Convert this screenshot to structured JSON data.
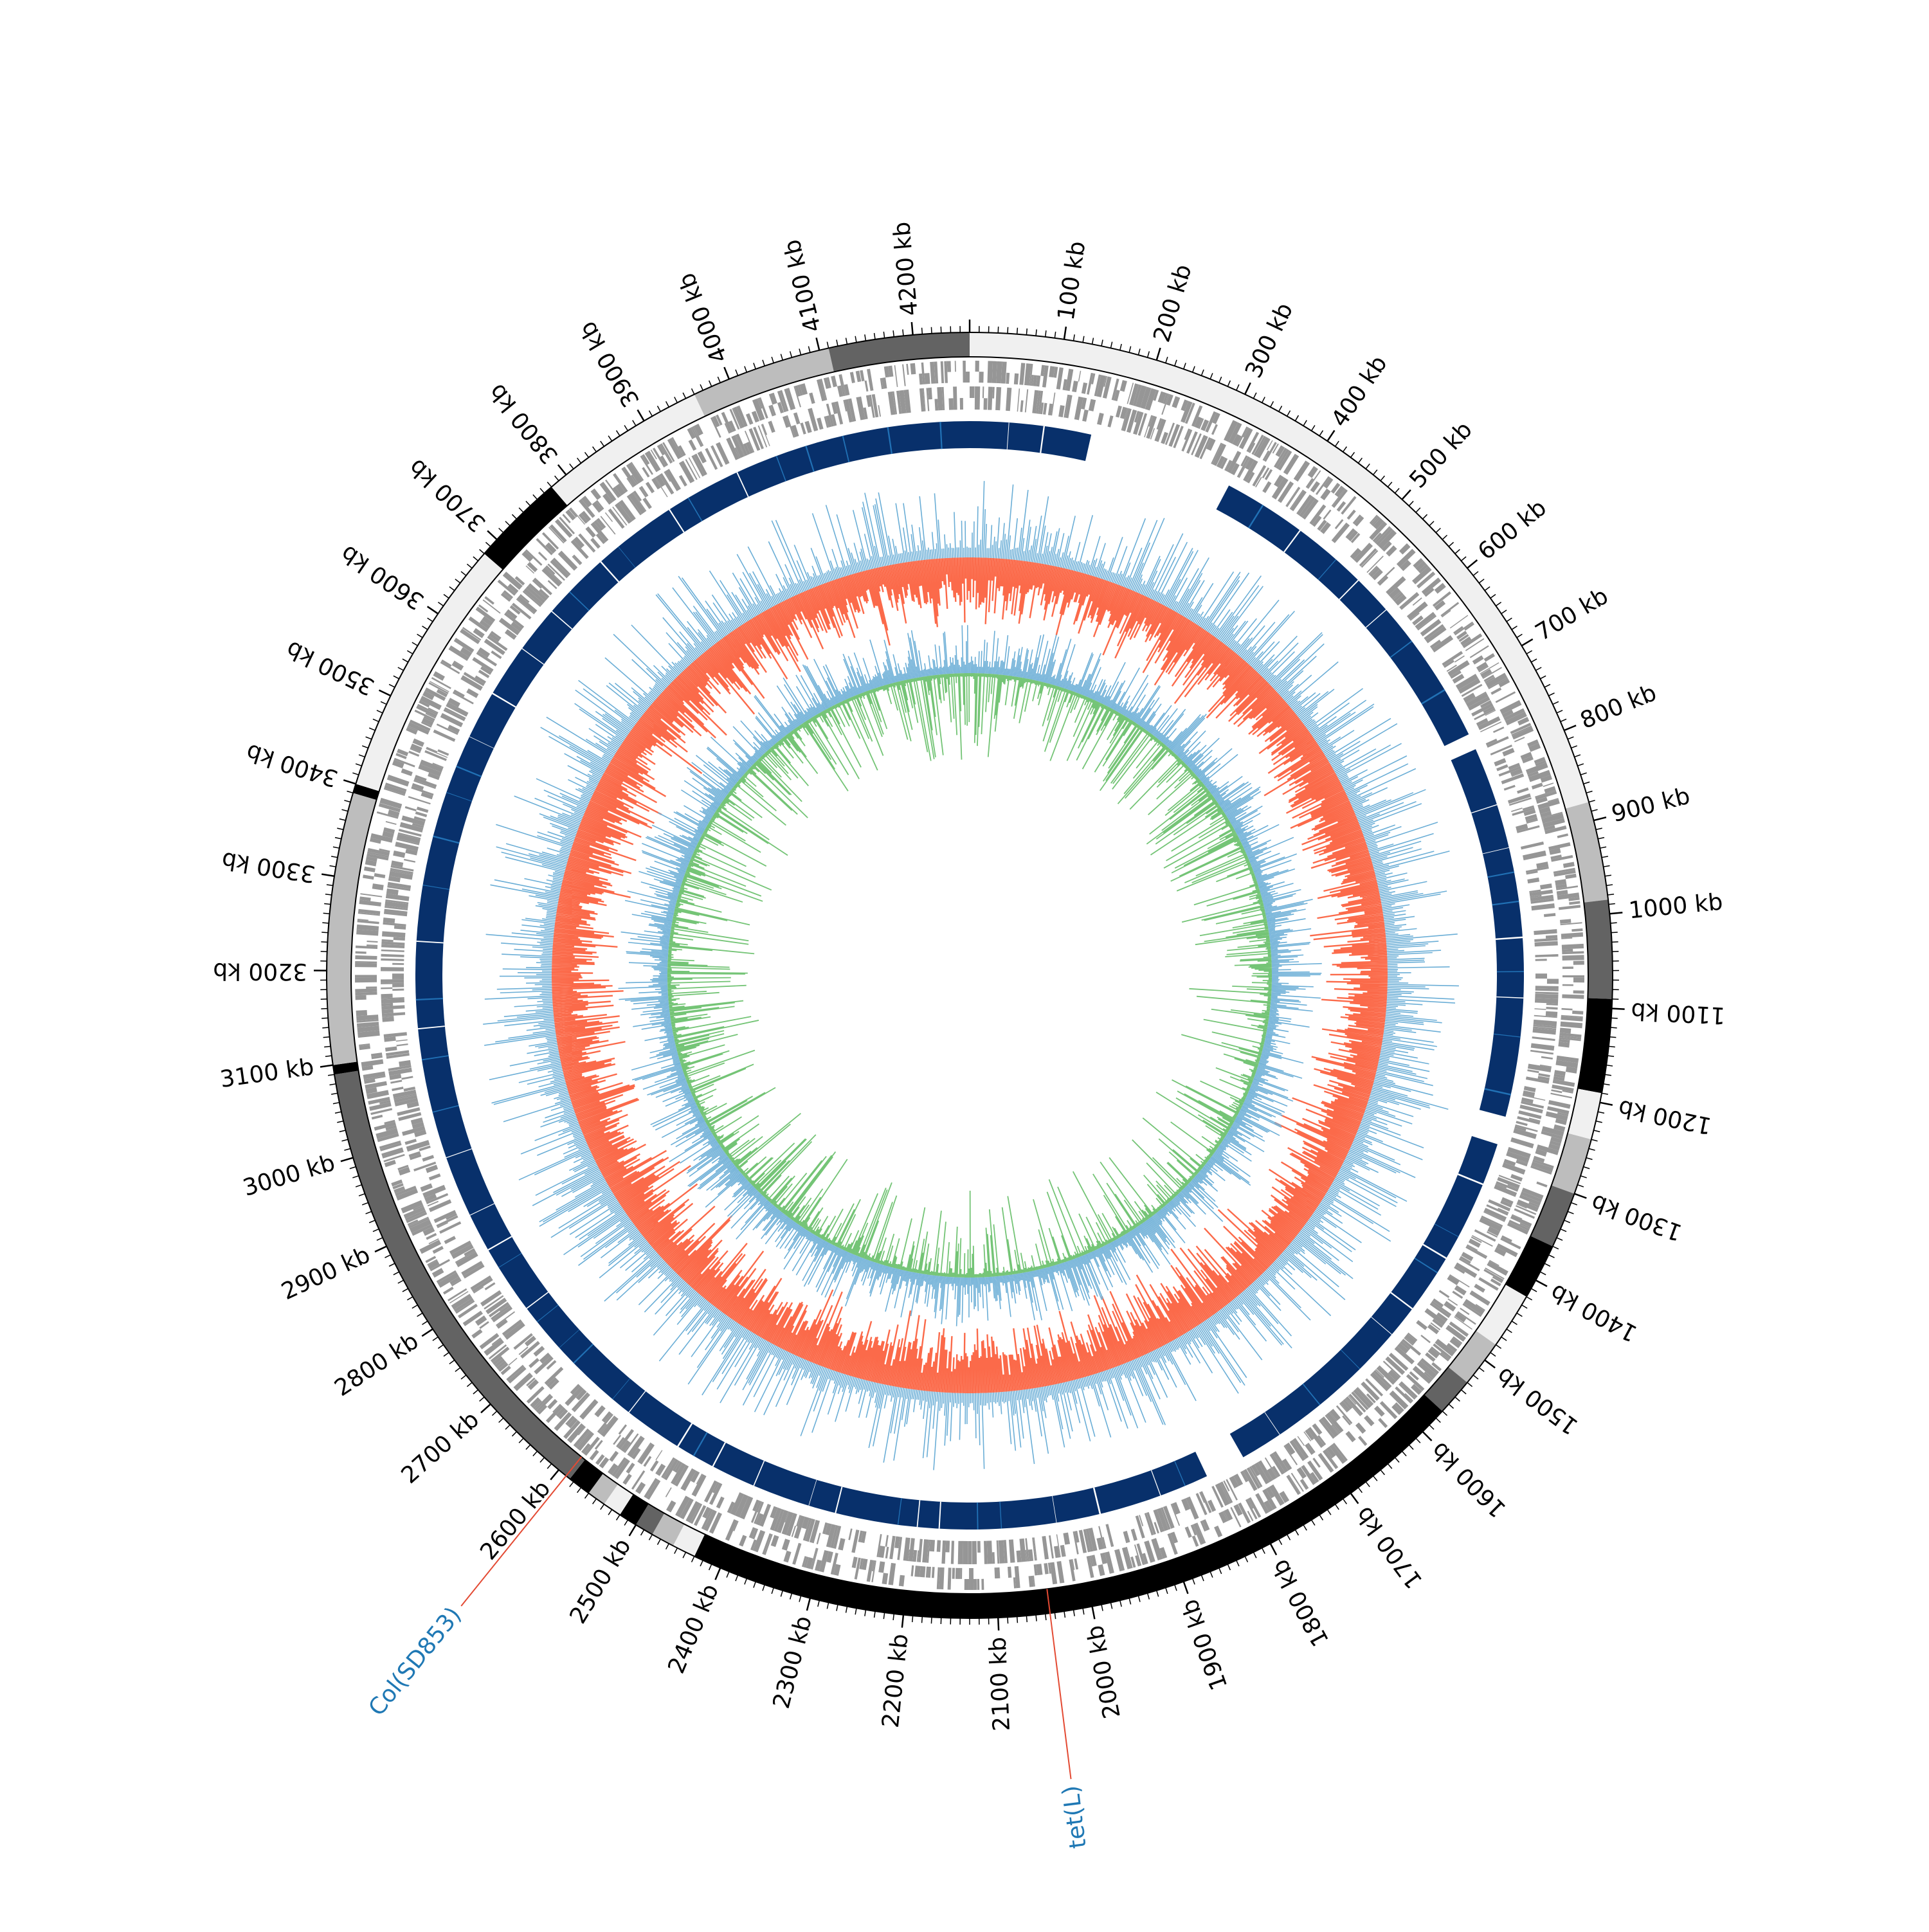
{
  "chart_data": {
    "type": "circular-genome-map",
    "genome_length_kb": 4260,
    "tick_labels": [
      "100 kb",
      "200 kb",
      "300 kb",
      "400 kb",
      "500 kb",
      "600 kb",
      "700 kb",
      "800 kb",
      "900 kb",
      "1000 kb",
      "1100 kb",
      "1200 kb",
      "1300 kb",
      "1400 kb",
      "1500 kb",
      "1600 kb",
      "1700 kb",
      "1800 kb",
      "1900 kb",
      "2000 kb",
      "2100 kb",
      "2200 kb",
      "2300 kb",
      "2400 kb",
      "2500 kb",
      "2600 kb",
      "2700 kb",
      "2800 kb",
      "2900 kb",
      "3000 kb",
      "3100 kb",
      "3200 kb",
      "3300 kb",
      "3400 kb",
      "3500 kb",
      "3600 kb",
      "3700 kb",
      "3800 kb",
      "3900 kb",
      "4000 kb",
      "4100 kb",
      "4200 kb"
    ],
    "contigs_kb": [
      {
        "start": 0,
        "end": 880,
        "shade": "#f0f0f0"
      },
      {
        "start": 880,
        "end": 985,
        "shade": "#bdbdbd"
      },
      {
        "start": 985,
        "end": 1090,
        "shade": "#636363"
      },
      {
        "start": 1090,
        "end": 1190,
        "shade": "#000000"
      },
      {
        "start": 1190,
        "end": 1240,
        "shade": "#f0f0f0"
      },
      {
        "start": 1240,
        "end": 1300,
        "shade": "#bdbdbd"
      },
      {
        "start": 1300,
        "end": 1360,
        "shade": "#636363"
      },
      {
        "start": 1360,
        "end": 1420,
        "shade": "#000000"
      },
      {
        "start": 1420,
        "end": 1480,
        "shade": "#f0f0f0"
      },
      {
        "start": 1480,
        "end": 1530,
        "shade": "#bdbdbd"
      },
      {
        "start": 1530,
        "end": 1570,
        "shade": "#636363"
      },
      {
        "start": 1570,
        "end": 2430,
        "shade": "#000000"
      },
      {
        "start": 2430,
        "end": 2455,
        "shade": "#f0f0f0"
      },
      {
        "start": 2455,
        "end": 2480,
        "shade": "#bdbdbd"
      },
      {
        "start": 2480,
        "end": 2500,
        "shade": "#636363"
      },
      {
        "start": 2500,
        "end": 2520,
        "shade": "#000000"
      },
      {
        "start": 2520,
        "end": 2540,
        "shade": "#f0f0f0"
      },
      {
        "start": 2540,
        "end": 2560,
        "shade": "#bdbdbd"
      },
      {
        "start": 2560,
        "end": 2585,
        "shade": "#000000"
      },
      {
        "start": 2585,
        "end": 3090,
        "shade": "#636363"
      },
      {
        "start": 3090,
        "end": 3100,
        "shade": "#000000"
      },
      {
        "start": 3100,
        "end": 3390,
        "shade": "#bdbdbd"
      },
      {
        "start": 3390,
        "end": 3400,
        "shade": "#000000"
      },
      {
        "start": 3400,
        "end": 3680,
        "shade": "#f0f0f0"
      },
      {
        "start": 3680,
        "end": 3780,
        "shade": "#000000"
      },
      {
        "start": 3780,
        "end": 3960,
        "shade": "#f0f0f0"
      },
      {
        "start": 3960,
        "end": 4110,
        "shade": "#bdbdbd"
      },
      {
        "start": 4110,
        "end": 4260,
        "shade": "#636363"
      }
    ],
    "blast_gaps_kb": [
      {
        "start": 150,
        "end": 330
      },
      {
        "start": 760,
        "end": 780
      },
      {
        "start": 1240,
        "end": 1275
      },
      {
        "start": 1780,
        "end": 1830
      }
    ],
    "feature_labels": [
      {
        "text": "Col(SD853)",
        "position_kb": 2590,
        "color": "#1f78b4"
      },
      {
        "text": "tet(L)",
        "position_kb": 2045,
        "color": "#1f78b4"
      }
    ],
    "colors": {
      "blast_identity": "#08306b",
      "blast_identity_light": "#2171b5",
      "cds_features": "#969696",
      "gc_content_negative": "#fb6a4a",
      "gc_content_positive": "#6baed6",
      "gc_skew_negative": "#74c476",
      "gc_skew_positive": "#6baed6",
      "label_leader": "#e34a33"
    }
  }
}
